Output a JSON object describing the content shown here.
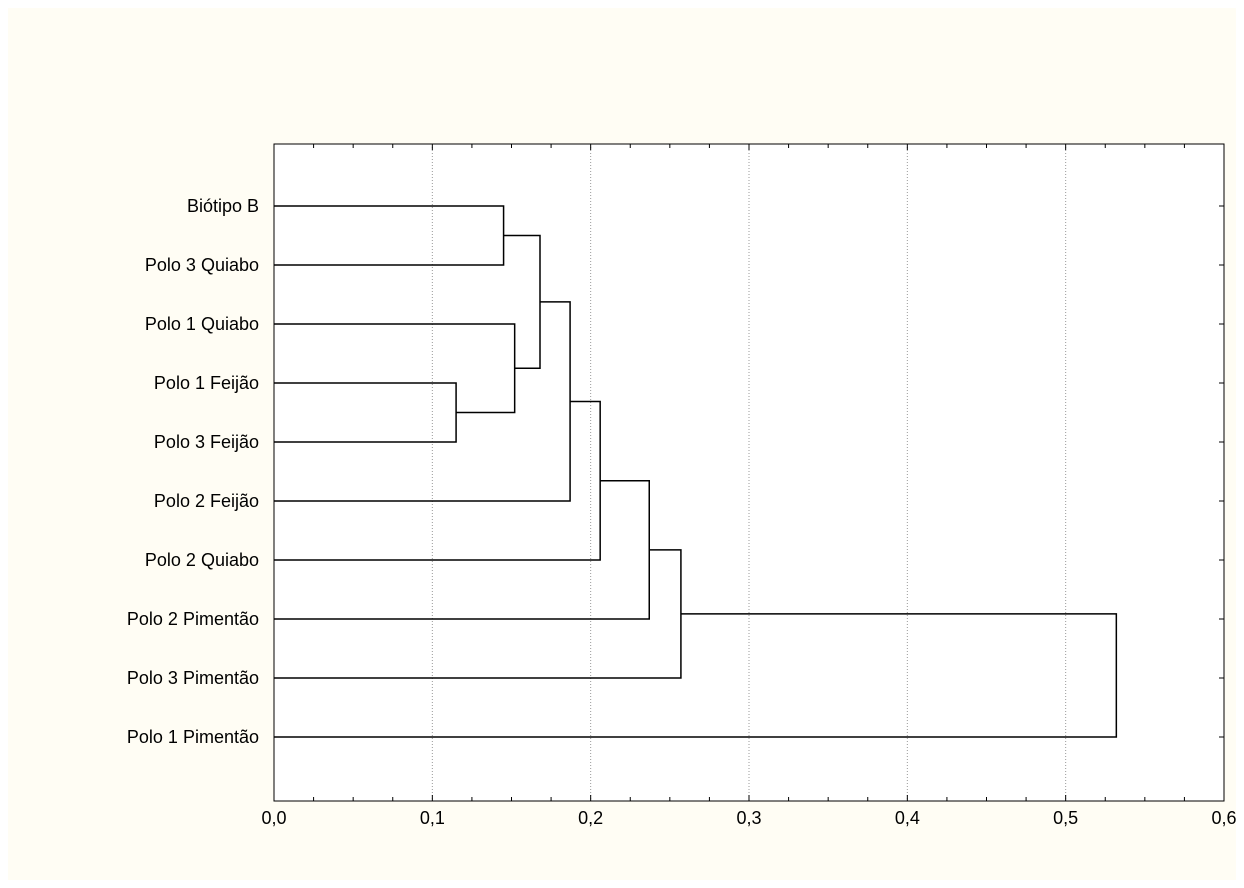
{
  "chart_data": {
    "type": "dendrogram",
    "title": "",
    "xlabel": "",
    "ylabel": "",
    "xlim": [
      0,
      0.6
    ],
    "x_ticks": [
      "0,0",
      "0,1",
      "0,2",
      "0,3",
      "0,4",
      "0,5",
      "0,6"
    ],
    "x_tick_values": [
      0,
      0.1,
      0.2,
      0.3,
      0.4,
      0.5,
      0.6
    ],
    "grid": "vertical dotted",
    "leaves": [
      "Biótipo B",
      "Polo 3 Quiabo",
      "Polo 1 Quiabo",
      "Polo 1 Feijão",
      "Polo 3 Feijão",
      "Polo 2 Feijão",
      "Polo 2 Quiabo",
      "Polo 2 Pimentão",
      "Polo 3 Pimentão",
      "Polo 1 Pimentão"
    ],
    "merges": [
      {
        "a": "Polo 1 Feijão",
        "b": "Polo 3 Feijão",
        "height": 0.115
      },
      {
        "a": "Biótipo B",
        "b": "Polo 3 Quiabo",
        "height": 0.145
      },
      {
        "a": "Polo 1 Quiabo",
        "b": "cluster 1",
        "height": 0.152
      },
      {
        "a": "cluster 2",
        "b": "cluster 3",
        "height": 0.168
      },
      {
        "a": "cluster 4",
        "b": "Polo 2 Feijão",
        "height": 0.187
      },
      {
        "a": "cluster 5",
        "b": "Polo 2 Quiabo",
        "height": 0.206
      },
      {
        "a": "cluster 6",
        "b": "Polo 2 Pimentão",
        "height": 0.237
      },
      {
        "a": "cluster 7",
        "b": "Polo 3 Pimentão",
        "height": 0.257
      },
      {
        "a": "cluster 8",
        "b": "Polo 1 Pimentão",
        "height": 0.532
      }
    ]
  }
}
